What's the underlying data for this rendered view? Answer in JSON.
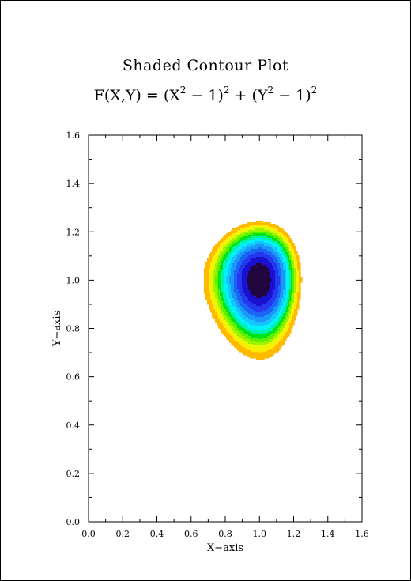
{
  "chart_data": {
    "type": "heatmap",
    "subtype": "filled-contour",
    "title": "Shaded Contour Plot",
    "subtitle_parts": [
      "F(X,Y) = (X",
      "2",
      " − 1)",
      "2",
      " + (Y",
      "2",
      " − 1)",
      "2"
    ],
    "xlabel": "X−axis",
    "ylabel": "Y−axis",
    "xlim": [
      0.0,
      1.6
    ],
    "ylim": [
      0.0,
      1.6
    ],
    "xticks": [
      "0.0",
      "0.2",
      "0.4",
      "0.6",
      "0.8",
      "1.0",
      "1.2",
      "1.4",
      "1.6"
    ],
    "yticks": [
      "0.0",
      "0.2",
      "0.4",
      "0.6",
      "0.8",
      "1.0",
      "1.2",
      "1.4",
      "1.6"
    ],
    "minor_ticks_per_major": 1,
    "grid": false,
    "legend": "none",
    "function": "(x^2 - 1)^2 + (y^2 - 1)^2",
    "center": [
      1.0,
      1.0
    ],
    "levels": [
      {
        "max": 0.02,
        "color": "#22063f"
      },
      {
        "max": 0.04,
        "color": "#1a10d0"
      },
      {
        "max": 0.06,
        "color": "#2638ee"
      },
      {
        "max": 0.08,
        "color": "#1a64f6"
      },
      {
        "max": 0.1,
        "color": "#1a98fa"
      },
      {
        "max": 0.12,
        "color": "#18c4ff"
      },
      {
        "max": 0.14,
        "color": "#00f2fa"
      },
      {
        "max": 0.16,
        "color": "#00f0b2"
      },
      {
        "max": 0.18,
        "color": "#00e41c"
      },
      {
        "max": 0.2,
        "color": "#5cf000"
      },
      {
        "max": 0.22,
        "color": "#9cf400"
      },
      {
        "max": 0.24,
        "color": "#e6f808"
      },
      {
        "max": 0.26,
        "color": "#ffec00"
      },
      {
        "max": 0.3,
        "color": "#ffba00"
      }
    ]
  }
}
